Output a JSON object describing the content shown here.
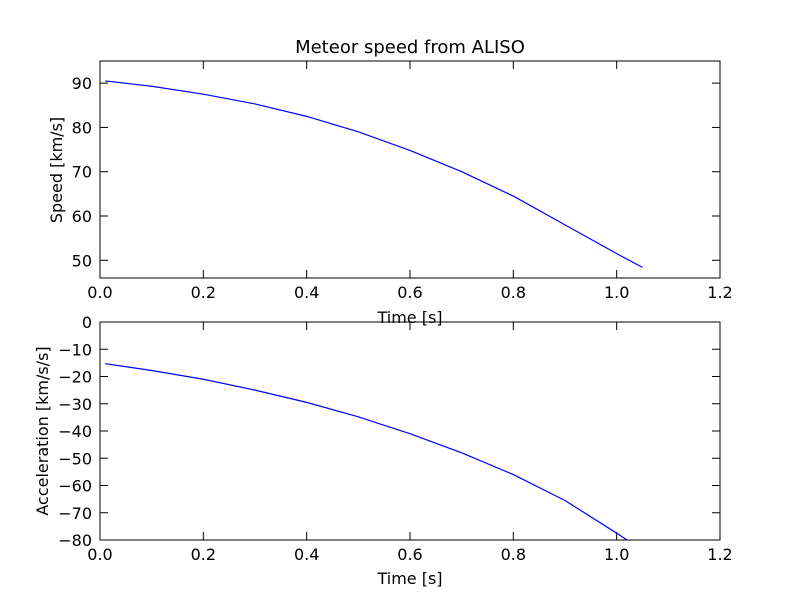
{
  "chart_data": [
    {
      "type": "line",
      "title": "Meteor speed from  ALISO",
      "xlabel": "Time [s]",
      "ylabel": "Speed [km/s]",
      "xlim": [
        0.0,
        1.2
      ],
      "ylim": [
        46,
        95
      ],
      "xticks": [
        "0.0",
        "0.2",
        "0.4",
        "0.6",
        "0.8",
        "1.0",
        "1.2"
      ],
      "yticks": [
        "50",
        "60",
        "70",
        "80",
        "90"
      ],
      "grid": false,
      "line_color": "#0000ff",
      "series": [
        {
          "x": [
            0.01,
            0.1,
            0.2,
            0.3,
            0.4,
            0.5,
            0.6,
            0.7,
            0.8,
            0.9,
            1.0,
            1.05
          ],
          "y": [
            90.5,
            89.3,
            87.5,
            85.3,
            82.5,
            79.0,
            74.8,
            70.0,
            64.5,
            58.0,
            51.5,
            48.4
          ]
        }
      ]
    },
    {
      "type": "line",
      "title": "",
      "xlabel": "Time [s]",
      "ylabel": "Acceleration [km/s/s]",
      "xlim": [
        0.0,
        1.2
      ],
      "ylim": [
        -80,
        0
      ],
      "xticks": [
        "0.0",
        "0.2",
        "0.4",
        "0.6",
        "0.8",
        "1.0",
        "1.2"
      ],
      "yticks": [
        "0",
        "−10",
        "−20",
        "−30",
        "−40",
        "−50",
        "−60",
        "−70",
        "−80"
      ],
      "grid": false,
      "line_color": "#0000ff",
      "series": [
        {
          "x": [
            0.01,
            0.1,
            0.2,
            0.3,
            0.4,
            0.5,
            0.6,
            0.7,
            0.8,
            0.9,
            1.0,
            1.02
          ],
          "y": [
            -15.3,
            -17.8,
            -21.0,
            -25.0,
            -29.5,
            -34.8,
            -41.0,
            -48.0,
            -56.0,
            -65.5,
            -77.5,
            -80.0
          ]
        }
      ]
    }
  ]
}
